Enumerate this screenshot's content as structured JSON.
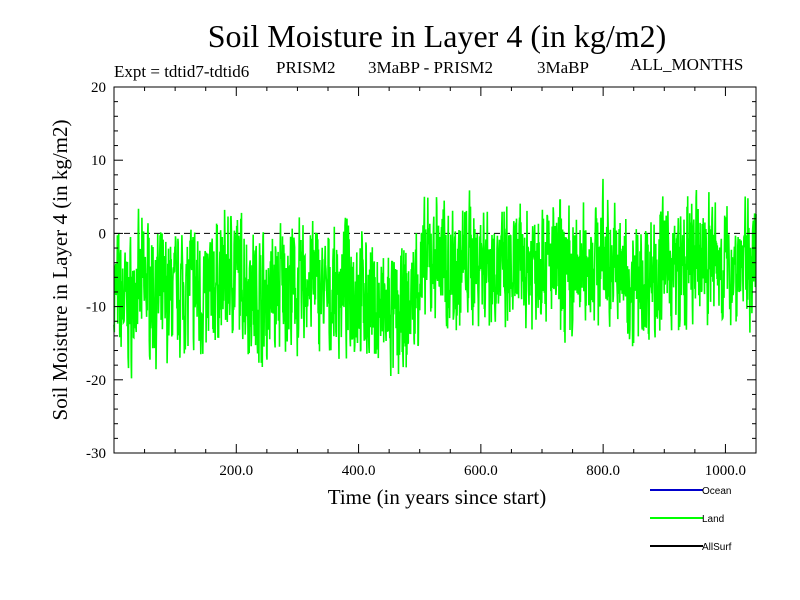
{
  "chart_data": {
    "type": "line",
    "title": "Soil Moisture in Layer 4 (in kg/m2)",
    "subtitle": {
      "experiment": "Expt = tdtid7-tdtid6",
      "run_a": "PRISM2",
      "comparison": "3MaBP - PRISM2",
      "run_b": "3MaBP",
      "period": "ALL_MONTHS"
    },
    "xlabel": "Time (in years since start)",
    "ylabel": "Soil Moisture in Layer 4 (in kg/m2)",
    "xlim": [
      0,
      1050
    ],
    "ylim": [
      -30,
      20
    ],
    "xticks": [
      200,
      400,
      600,
      800,
      1000
    ],
    "xtick_labels": [
      "200.0",
      "400.0",
      "600.0",
      "800.0",
      "1000.0"
    ],
    "yticks": [
      -30,
      -20,
      -10,
      0,
      10,
      20
    ],
    "ytick_labels": [
      "-30",
      "-20",
      "-10",
      "0",
      "10",
      "20"
    ],
    "reference_line": {
      "y": 0,
      "style": "dashed"
    },
    "legend": {
      "placement": "bottom-right",
      "entries": [
        {
          "name": "Ocean",
          "color": "#0000cc"
        },
        {
          "name": "Land",
          "color": "#00ff00"
        },
        {
          "name": "AllSurf",
          "color": "#000000"
        }
      ]
    },
    "series": [
      {
        "name": "Land",
        "color": "#00ff00",
        "x": [
          0,
          25,
          50,
          75,
          100,
          125,
          150,
          175,
          200,
          225,
          250,
          275,
          300,
          325,
          350,
          375,
          400,
          425,
          450,
          475,
          500,
          525,
          550,
          575,
          600,
          625,
          650,
          675,
          700,
          725,
          750,
          775,
          800,
          825,
          850,
          875,
          900,
          925,
          950,
          975,
          1000,
          1025,
          1050
        ],
        "values": [
          -8,
          -10,
          -6,
          -9,
          -8,
          -7,
          -9,
          -6,
          -5,
          -8,
          -9,
          -7,
          -8,
          -6,
          -9,
          -7,
          -8,
          -10,
          -11,
          -12,
          -6,
          -3,
          -5,
          -4,
          -3,
          -5,
          -6,
          -4,
          -3,
          -5,
          -6,
          -4,
          -3,
          -5,
          -7,
          -6,
          -4,
          -5,
          -4,
          -3,
          -5,
          -4,
          -3
        ]
      }
    ]
  }
}
